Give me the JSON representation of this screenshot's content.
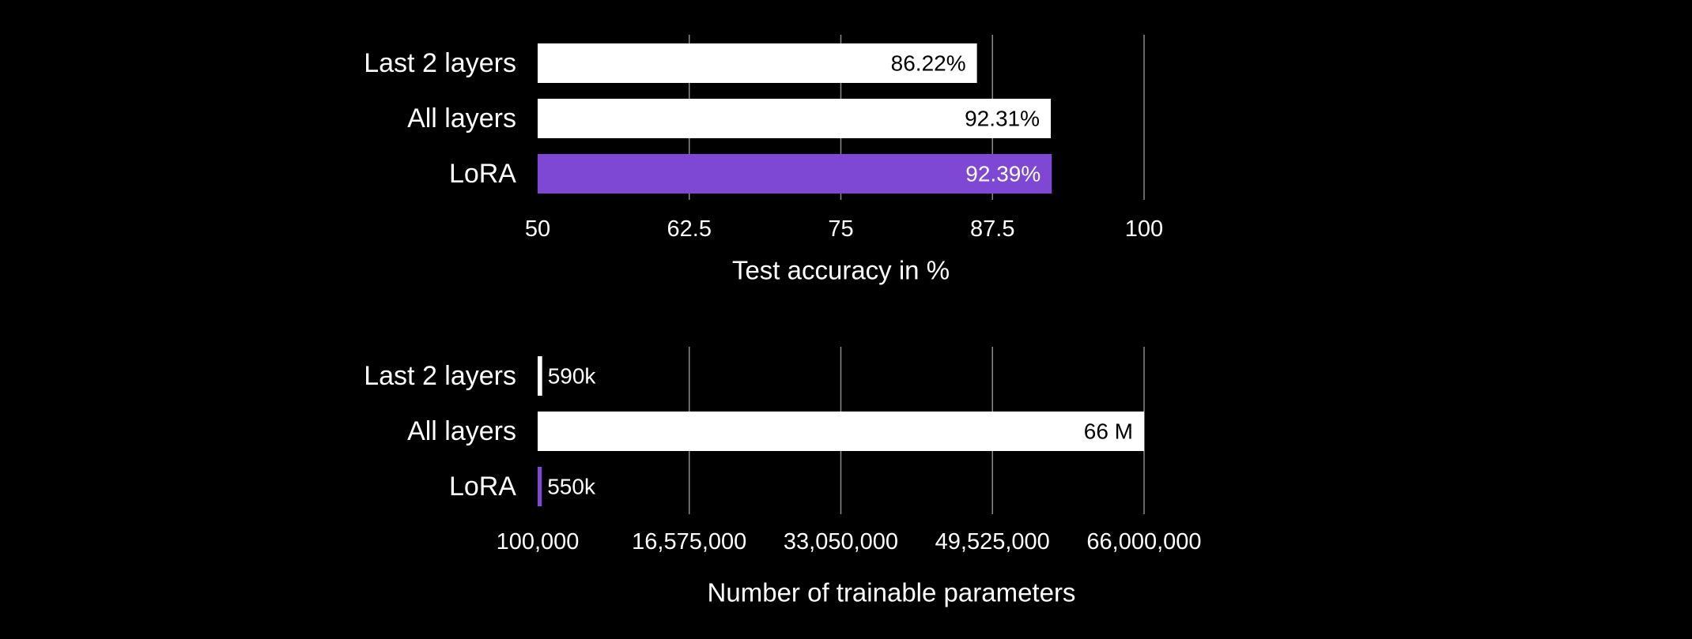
{
  "colors": {
    "background": "#000000",
    "text": "#ffffff",
    "gridline": "#8a8a8a",
    "bar_default": "#ffffff",
    "bar_highlight": "#7e48d4",
    "label_on_light": "#000000",
    "label_on_highlight": "#ffffff"
  },
  "chart_data": [
    {
      "type": "bar",
      "orientation": "horizontal",
      "categories": [
        "Last 2 layers",
        "All layers",
        "LoRA"
      ],
      "values": [
        86.22,
        92.31,
        92.39
      ],
      "data_labels": [
        "86.22%",
        "92.31%",
        "92.39%"
      ],
      "highlight": "LoRA",
      "xlabel": "Test accuracy in %",
      "xlim": [
        50,
        100
      ],
      "xticks": [
        50,
        62.5,
        75,
        87.5,
        100
      ],
      "xtick_labels": [
        "50",
        "62.5",
        "75",
        "87.5",
        "100"
      ],
      "grid": "vertical",
      "data_label_position": "inside-end"
    },
    {
      "type": "bar",
      "orientation": "horizontal",
      "categories": [
        "Last 2 layers",
        "All layers",
        "LoRA"
      ],
      "values": [
        590000,
        66000000,
        550000
      ],
      "data_labels": [
        "590k",
        "66 M",
        "550k"
      ],
      "highlight": "LoRA",
      "xlabel": "Number of trainable parameters",
      "xlim": [
        100000,
        66000000
      ],
      "xticks": [
        100000,
        16575000,
        33050000,
        49525000,
        66000000
      ],
      "xtick_labels": [
        "100,000",
        "16,575,000",
        "33,050,000",
        "49,525,000",
        "66,000,000"
      ],
      "grid": "vertical",
      "data_label_position": "inside-end-or-outside-if-small"
    }
  ]
}
